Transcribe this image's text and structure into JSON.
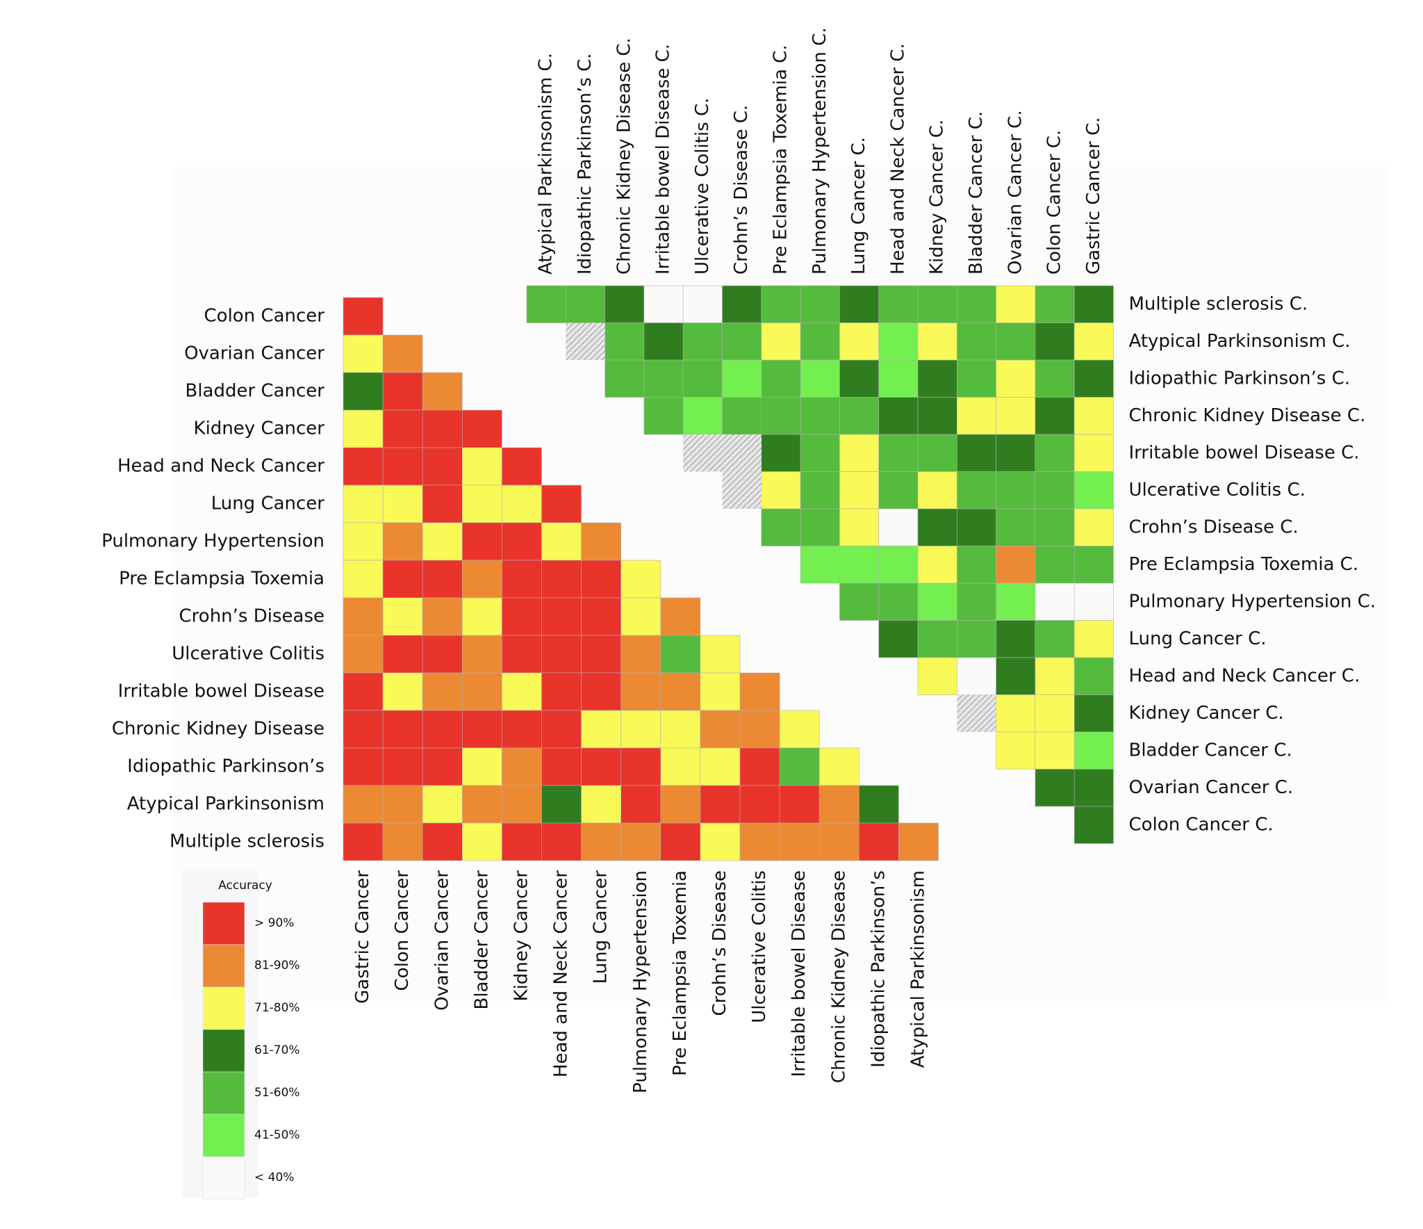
{
  "left": {
    "rows": [
      "Colon Cancer",
      "Ovarian Cancer",
      "Bladder Cancer",
      "Kidney Cancer",
      "Head and Neck Cancer",
      "Lung Cancer",
      "Pulmonary Hypertension",
      "Pre Eclampsia Toxemia",
      "Crohn’s Disease",
      "Ulcerative Colitis",
      "Irritable bowel Disease",
      "Chronic Kidney Disease",
      "Idiopathic Parkinson’s",
      "Atypical Parkinsonism",
      "Multiple sclerosis"
    ],
    "columns": [
      "Gastric Cancer",
      "Colon Cancer",
      "Ovarian Cancer",
      "Bladder Cancer",
      "Kidney Cancer",
      "Head and Neck Cancer",
      "Lung Cancer",
      "Pulmonary Hypertension",
      "Pre Eclampsia Toxemia",
      "Crohn’s Disease",
      "Ulcerative Colitis",
      "Irritable bowel Disease",
      "Chronic Kidney Disease",
      "Idiopathic Parkinson’s",
      "Atypical Parkinsonism"
    ],
    "values": [
      [
        0
      ],
      [
        2,
        1
      ],
      [
        3,
        0,
        1
      ],
      [
        2,
        0,
        0,
        0
      ],
      [
        0,
        0,
        0,
        2,
        0
      ],
      [
        2,
        2,
        0,
        2,
        2,
        0
      ],
      [
        2,
        1,
        2,
        0,
        0,
        2,
        1
      ],
      [
        2,
        0,
        0,
        1,
        0,
        0,
        0,
        2
      ],
      [
        1,
        2,
        1,
        2,
        0,
        0,
        0,
        2,
        1
      ],
      [
        1,
        0,
        0,
        1,
        0,
        0,
        0,
        1,
        4,
        2
      ],
      [
        0,
        2,
        1,
        1,
        2,
        0,
        0,
        1,
        1,
        2,
        1
      ],
      [
        0,
        0,
        0,
        0,
        0,
        0,
        2,
        2,
        2,
        1,
        1,
        2
      ],
      [
        0,
        0,
        0,
        2,
        1,
        0,
        0,
        0,
        2,
        2,
        0,
        4,
        2
      ],
      [
        1,
        1,
        2,
        1,
        1,
        3,
        2,
        0,
        1,
        0,
        0,
        0,
        1,
        3
      ],
      [
        0,
        1,
        0,
        2,
        0,
        0,
        1,
        1,
        0,
        2,
        1,
        1,
        1,
        0,
        1
      ]
    ]
  },
  "right": {
    "rows": [
      "Multiple sclerosis C.",
      "Atypical Parkinsonism C.",
      "Idiopathic Parkinson’s C.",
      "Chronic Kidney Disease C.",
      "Irritable bowel Disease C.",
      "Ulcerative Colitis C.",
      "Crohn’s Disease C.",
      "Pre Eclampsia Toxemia C.",
      "Pulmonary Hypertension C.",
      "Lung Cancer C.",
      "Head and Neck Cancer C.",
      "Kidney Cancer C.",
      "Bladder Cancer C.",
      "Ovarian Cancer C.",
      "Colon Cancer C."
    ],
    "columns": [
      "Atypical Parkinsonism C.",
      "Idiopathic Parkinson’s C.",
      "Chronic Kidney Disease C.",
      "Irritable bowel Disease C.",
      "Ulcerative Colitis C.",
      "Crohn’s Disease C.",
      "Pre Eclampsia Toxemia C.",
      "Pulmonary Hypertension C.",
      "Lung Cancer C.",
      "Head and Neck Cancer C.",
      "Kidney Cancer C.",
      "Bladder Cancer C.",
      "Ovarian Cancer C.",
      "Colon Cancer C.",
      "Gastric Cancer C."
    ],
    "values": [
      [
        4,
        4,
        3,
        6,
        6,
        3,
        4,
        4,
        3,
        4,
        4,
        4,
        2,
        4,
        3
      ],
      [
        null,
        null,
        4,
        3,
        4,
        4,
        2,
        4,
        2,
        5,
        2,
        4,
        4,
        3,
        2
      ],
      [
        null,
        null,
        4,
        4,
        4,
        5,
        4,
        5,
        3,
        5,
        3,
        4,
        2,
        4,
        3
      ],
      [
        null,
        null,
        null,
        4,
        5,
        4,
        4,
        4,
        4,
        3,
        3,
        2,
        2,
        3,
        2
      ],
      [
        null,
        null,
        null,
        null,
        null,
        null,
        3,
        4,
        2,
        4,
        4,
        3,
        3,
        4,
        2
      ],
      [
        null,
        null,
        null,
        null,
        null,
        null,
        2,
        4,
        2,
        4,
        2,
        4,
        4,
        4,
        5
      ],
      [
        null,
        null,
        null,
        null,
        null,
        null,
        4,
        4,
        2,
        6,
        3,
        3,
        4,
        4,
        2
      ],
      [
        null,
        null,
        null,
        null,
        null,
        null,
        null,
        5,
        5,
        5,
        2,
        4,
        1,
        4,
        4
      ],
      [
        null,
        null,
        null,
        null,
        null,
        null,
        null,
        null,
        4,
        4,
        5,
        4,
        5,
        6,
        6
      ],
      [
        null,
        null,
        null,
        null,
        null,
        null,
        null,
        null,
        null,
        3,
        4,
        4,
        3,
        4,
        2
      ],
      [
        null,
        null,
        null,
        null,
        null,
        null,
        null,
        null,
        null,
        null,
        2,
        6,
        3,
        2,
        4
      ],
      [
        null,
        null,
        null,
        null,
        null,
        null,
        null,
        null,
        null,
        null,
        null,
        null,
        2,
        2,
        3
      ],
      [
        null,
        null,
        null,
        null,
        null,
        null,
        null,
        null,
        null,
        null,
        null,
        null,
        2,
        2,
        5
      ],
      [
        null,
        null,
        null,
        null,
        null,
        null,
        null,
        null,
        null,
        null,
        null,
        null,
        null,
        3,
        3
      ],
      [
        null,
        null,
        null,
        null,
        null,
        null,
        null,
        null,
        null,
        null,
        null,
        null,
        null,
        null,
        3
      ]
    ],
    "hatched": [
      [
        1,
        1
      ],
      [
        4,
        4
      ],
      [
        4,
        5
      ],
      [
        5,
        5
      ],
      [
        11,
        11
      ]
    ]
  },
  "legend": {
    "title": "Accuracy",
    "items": [
      {
        "label": "> 90%",
        "color": "#e8342a"
      },
      {
        "label": "81-90%",
        "color": "#ec8a34"
      },
      {
        "label": "71-80%",
        "color": "#f9f958"
      },
      {
        "label": "61-70%",
        "color": "#2f7d1f"
      },
      {
        "label": "51-60%",
        "color": "#55bb3c"
      },
      {
        "label": "41-50%",
        "color": "#73f04f"
      },
      {
        "label": "< 40%",
        "color": "#fafafa"
      }
    ]
  }
}
